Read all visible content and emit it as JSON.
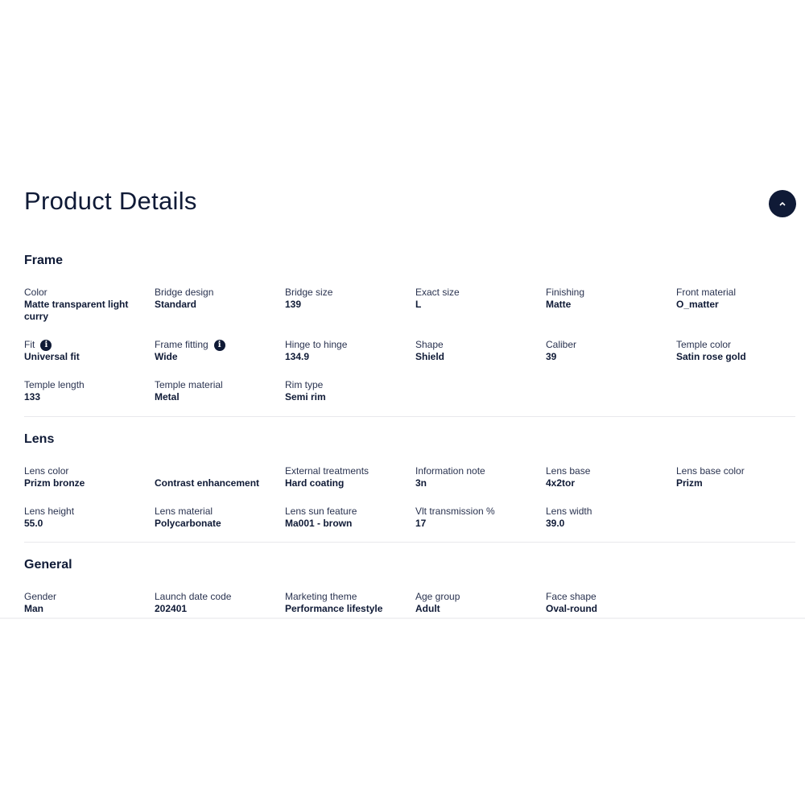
{
  "title": "Product Details",
  "collapse_icon": "chevron-up-icon",
  "sections": [
    {
      "heading": "Frame",
      "items": [
        {
          "label": "Color",
          "value": "Matte transparent light curry"
        },
        {
          "label": "Bridge design",
          "value": "Standard"
        },
        {
          "label": "Bridge size",
          "value": "139"
        },
        {
          "label": "Exact size",
          "value": "L"
        },
        {
          "label": "Finishing",
          "value": "Matte"
        },
        {
          "label": "Front material",
          "value": "O_matter"
        },
        {
          "label": "Fit",
          "value": "Universal fit",
          "info": true
        },
        {
          "label": "Frame fitting",
          "value": "Wide",
          "info": true
        },
        {
          "label": "Hinge to hinge",
          "value": "134.9"
        },
        {
          "label": "Shape",
          "value": "Shield"
        },
        {
          "label": "Caliber",
          "value": "39"
        },
        {
          "label": "Temple color",
          "value": "Satin rose gold"
        },
        {
          "label": "Temple length",
          "value": "133"
        },
        {
          "label": "Temple material",
          "value": "Metal"
        },
        {
          "label": "Rim type",
          "value": "Semi rim"
        }
      ]
    },
    {
      "heading": "Lens",
      "items": [
        {
          "label": "Lens color",
          "value": "Prizm bronze"
        },
        {
          "label": "",
          "value": "Contrast enhancement"
        },
        {
          "label": "External treatments",
          "value": "Hard coating"
        },
        {
          "label": "Information note",
          "value": "3n"
        },
        {
          "label": "Lens base",
          "value": "4x2tor"
        },
        {
          "label": "Lens base color",
          "value": "Prizm"
        },
        {
          "label": "Lens height",
          "value": "55.0"
        },
        {
          "label": "Lens material",
          "value": "Polycarbonate"
        },
        {
          "label": "Lens sun feature",
          "value": "Ma001 - brown"
        },
        {
          "label": "Vlt transmission %",
          "value": "17"
        },
        {
          "label": "Lens width",
          "value": "39.0"
        }
      ]
    },
    {
      "heading": "General",
      "items": [
        {
          "label": "Gender",
          "value": "Man"
        },
        {
          "label": "Launch date code",
          "value": "202401"
        },
        {
          "label": "Marketing theme",
          "value": "Performance lifestyle"
        },
        {
          "label": "Age group",
          "value": "Adult"
        },
        {
          "label": "Face shape",
          "value": "Oval-round"
        }
      ]
    }
  ]
}
